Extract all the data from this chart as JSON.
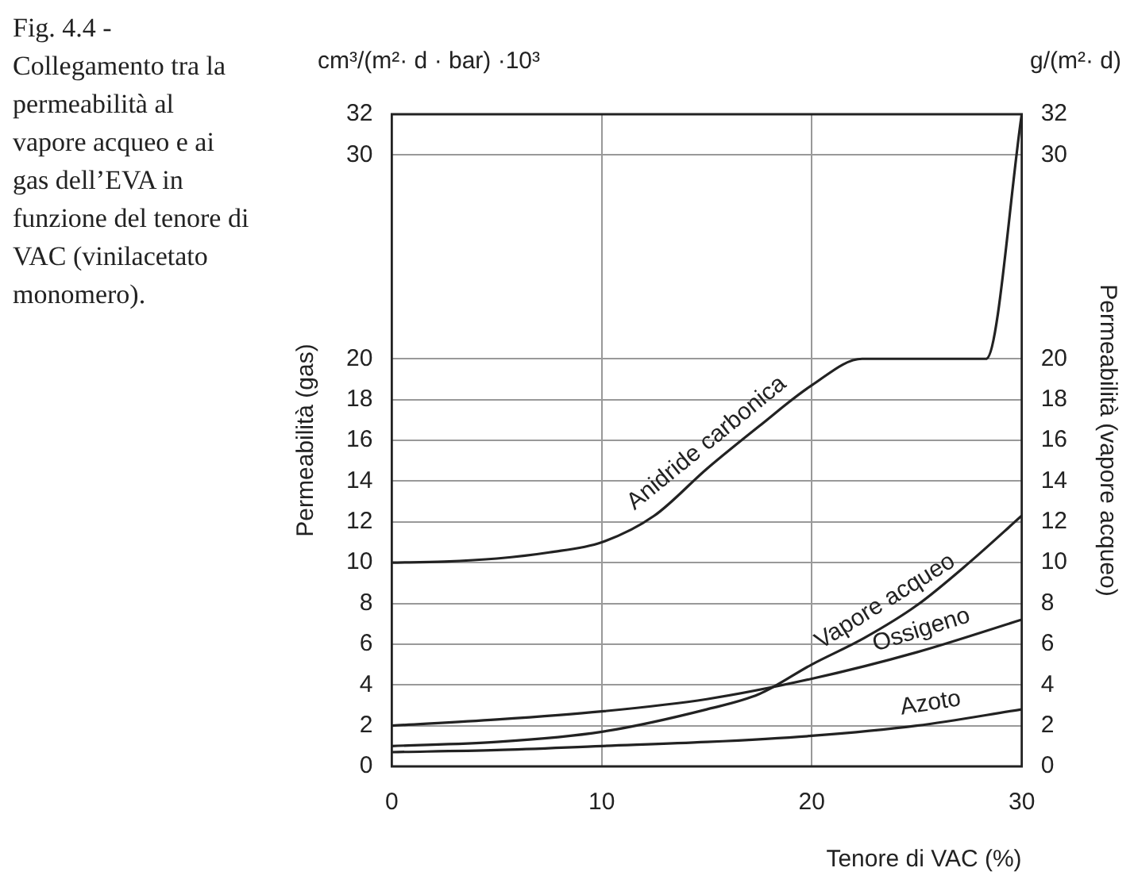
{
  "chart_data": {
    "type": "line",
    "title": "Fig. 4.4 - Collegamento tra la permeabilità al vapore acqueo e ai gas dell’EVA in funzione del tenore di VAC (vinilacetato monomero).",
    "xlabel": "Tenore di VAC (%)",
    "ylabel": "Permeabilità (gas)",
    "y2label": "Permeabilità (vapore acqueo)",
    "annotations": [
      "cm³/(m²· d · bar) ·10³",
      "g/(m²· d)"
    ],
    "xlim": [
      0,
      30
    ],
    "xticks": [
      0,
      10,
      20,
      30
    ],
    "ylim": [
      0,
      32
    ],
    "yticks": [
      0,
      2,
      4,
      6,
      8,
      10,
      12,
      14,
      16,
      18,
      20,
      30,
      32
    ],
    "y2lim": [
      0,
      32
    ],
    "y2ticks": [
      0,
      2,
      4,
      6,
      8,
      10,
      12,
      14,
      16,
      18,
      20,
      30,
      32
    ],
    "grid": true,
    "legend": false,
    "marker": "none",
    "line_style": "solid",
    "series": [
      {
        "name": "Anidride carbonica",
        "color": "#222222",
        "x": [
          0,
          2.5,
          5,
          7.5,
          10,
          12.5,
          15,
          17.5,
          20,
          22.4,
          28.3,
          30
        ],
        "values": [
          10,
          10.05,
          10.2,
          10.5,
          11.0,
          12.3,
          14.6,
          16.7,
          18.7,
          20,
          20,
          32
        ]
      },
      {
        "name": "Vapore acqueo",
        "color": "#222222",
        "axis": "y2",
        "x": [
          0,
          5,
          10,
          15,
          17.5,
          20,
          22.5,
          25,
          27.5,
          30
        ],
        "values": [
          1.0,
          1.2,
          1.7,
          2.8,
          3.55,
          5.0,
          6.3,
          7.9,
          10.0,
          12.3
        ]
      },
      {
        "name": "Ossigeno",
        "color": "#222222",
        "x": [
          0,
          5,
          10,
          15,
          20,
          25,
          30
        ],
        "values": [
          2.0,
          2.3,
          2.7,
          3.3,
          4.3,
          5.6,
          7.2
        ]
      },
      {
        "name": "Azoto",
        "color": "#222222",
        "x": [
          0,
          5,
          10,
          15,
          20,
          25,
          30
        ],
        "values": [
          0.7,
          0.8,
          1.0,
          1.2,
          1.5,
          2.0,
          2.8
        ]
      }
    ]
  }
}
